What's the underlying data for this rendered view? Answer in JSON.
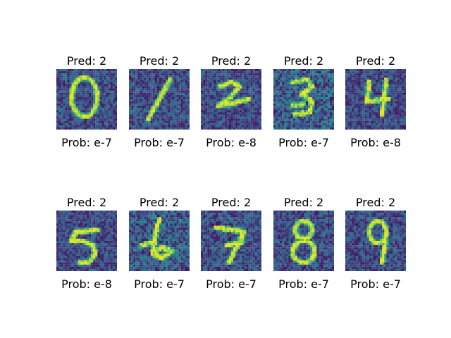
{
  "figure": {
    "panels": [
      {
        "pred": "Pred: 2",
        "prob": "Prob: e-7",
        "digit": "0"
      },
      {
        "pred": "Pred: 2",
        "prob": "Prob: e-7",
        "digit": "1"
      },
      {
        "pred": "Pred: 2",
        "prob": "Prob: e-8",
        "digit": "2"
      },
      {
        "pred": "Pred: 2",
        "prob": "Prob: e-7",
        "digit": "3"
      },
      {
        "pred": "Pred: 2",
        "prob": "Prob: e-8",
        "digit": "4"
      },
      {
        "pred": "Pred: 2",
        "prob": "Prob: e-8",
        "digit": "5"
      },
      {
        "pred": "Pred: 2",
        "prob": "Prob: e-7",
        "digit": "6"
      },
      {
        "pred": "Pred: 2",
        "prob": "Prob: e-7",
        "digit": "7"
      },
      {
        "pred": "Pred: 2",
        "prob": "Prob: e-7",
        "digit": "8"
      },
      {
        "pred": "Pred: 2",
        "prob": "Prob: e-7",
        "digit": "9"
      }
    ]
  },
  "colors": {
    "background_dark": "#3b1f6e",
    "background_mid": "#3e5f93",
    "stroke_bright": "#c8e330",
    "stroke_green": "#5ec962"
  }
}
